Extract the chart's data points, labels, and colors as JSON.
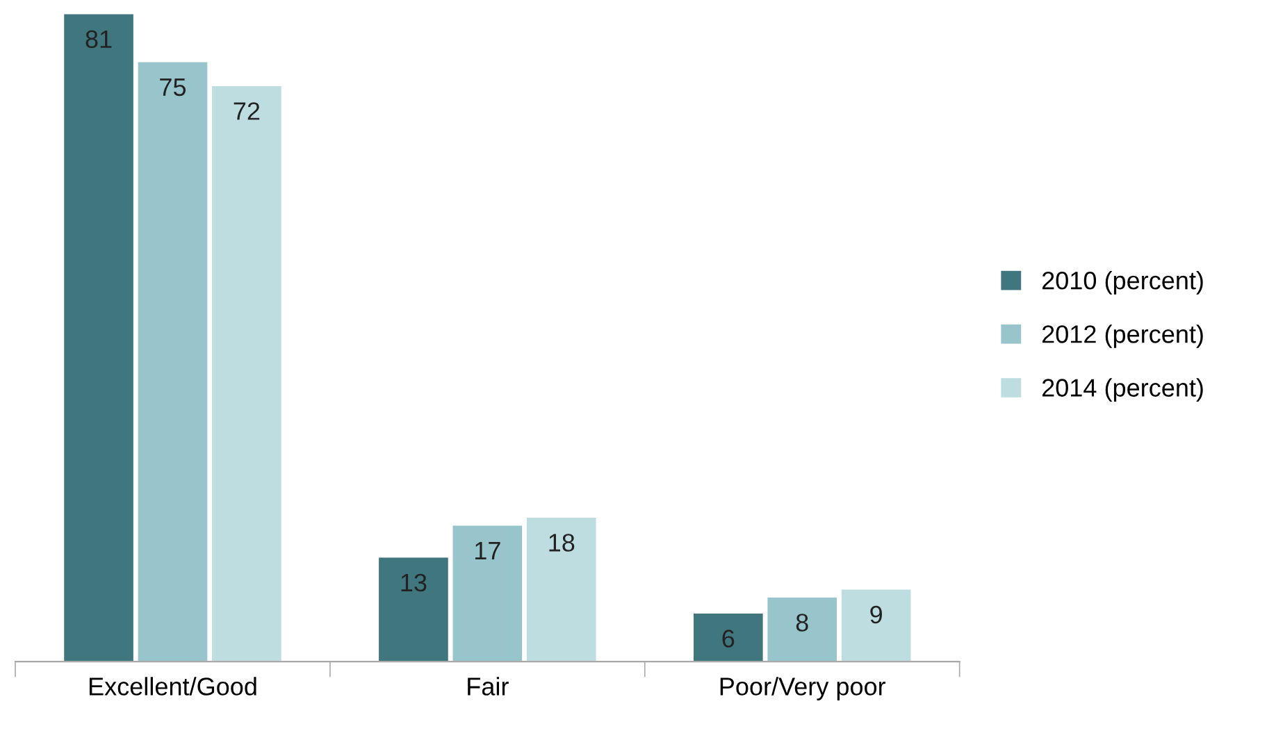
{
  "chart_data": {
    "type": "bar",
    "categories": [
      "Excellent/Good",
      "Fair",
      "Poor/Very poor"
    ],
    "series": [
      {
        "name": "2010 (percent)",
        "color": "#40777f",
        "values": [
          81,
          13,
          6
        ]
      },
      {
        "name": "2012 (percent)",
        "color": "#98c5cc",
        "values": [
          75,
          17,
          8
        ]
      },
      {
        "name": "2014 (percent)",
        "color": "#bddde0",
        "values": [
          72,
          18,
          9
        ]
      }
    ],
    "data_labels": true,
    "legend": "right",
    "grid": false
  }
}
